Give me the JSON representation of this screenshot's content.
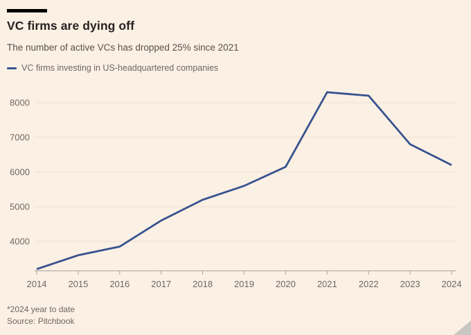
{
  "chart_data": {
    "type": "line",
    "title": "VC firms are dying off",
    "subtitle": "The number of active VCs has dropped 25% since 2021",
    "x": [
      2014,
      2015,
      2016,
      2017,
      2018,
      2019,
      2020,
      2021,
      2022,
      2023,
      2024
    ],
    "series": [
      {
        "name": "VC firms investing in US-headquartered companies",
        "values": [
          3200,
          3600,
          3850,
          4600,
          5200,
          5600,
          6150,
          8300,
          8200,
          6800,
          6200
        ]
      }
    ],
    "xlabel": "",
    "ylabel": "",
    "ylim": [
      3160,
      8600
    ],
    "yticks": [
      4000,
      5000,
      6000,
      7000,
      8000
    ],
    "grid": "horizontal-only",
    "legend_position": "top-left"
  },
  "footer": {
    "note": "*2024 year to date",
    "source": "Source: Pitchbook"
  },
  "colors": {
    "background": "#fbf0e4",
    "accent_bar": "#000000",
    "line": "#37538f",
    "title_text": "#262220",
    "subtitle_text": "#57514b",
    "secondary_text": "#6e6862",
    "gridline": "#ecdfd2",
    "axis": "#aaa298",
    "corner_grip": "#c9c5c1"
  },
  "icons": {
    "resize_grip_icon": "css-triangle-bottom-right"
  }
}
